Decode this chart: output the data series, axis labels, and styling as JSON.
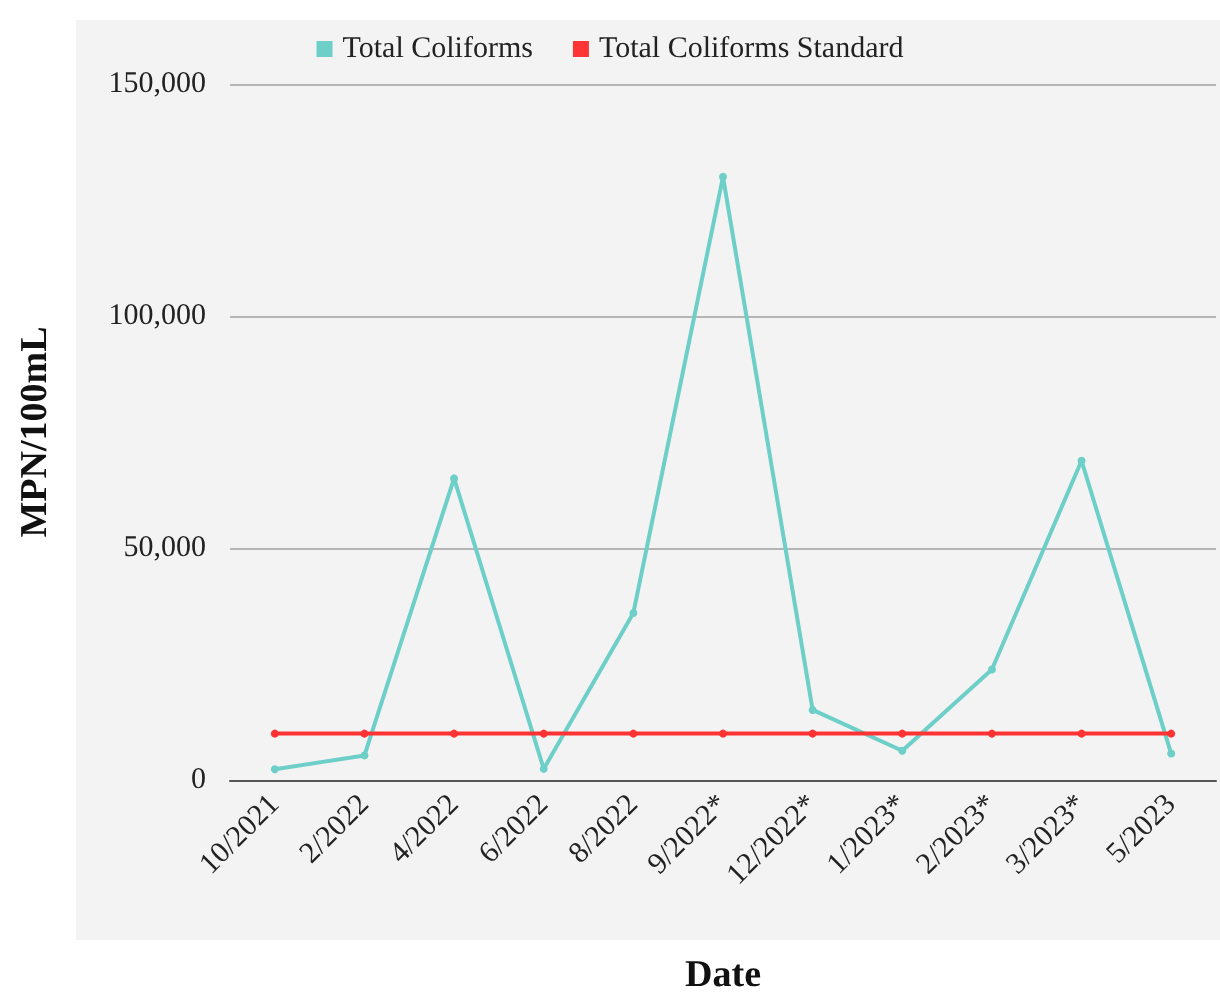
{
  "chart_data": {
    "type": "line",
    "xlabel": "Date",
    "ylabel": "MPN/100mL",
    "categories": [
      "10/2021",
      "2/2022",
      "4/2022",
      "6/2022",
      "8/2022",
      "9/2022*",
      "12/2022*",
      "1/2023*",
      "2/2023*",
      "3/2023*",
      "5/2023"
    ],
    "series": [
      {
        "name": "Total Coliforms",
        "color": "#6dcfc8",
        "values": [
          2300,
          5300,
          65000,
          2400,
          36000,
          130000,
          15100,
          6300,
          23800,
          68800,
          5700
        ]
      },
      {
        "name": "Total Coliforms Standard",
        "color": "#ff3333",
        "values": [
          10000,
          10000,
          10000,
          10000,
          10000,
          10000,
          10000,
          10000,
          10000,
          10000,
          10000
        ]
      }
    ],
    "ylim": [
      0,
      150000
    ],
    "yticks": [
      0,
      {
        "value": 50000,
        "label": "50,000"
      },
      {
        "value": 100000,
        "label": "100,000"
      },
      {
        "value": 150000,
        "label": "150,000"
      }
    ],
    "grid": "y",
    "legend": "top",
    "marker": "circle",
    "line_style": "solid"
  }
}
